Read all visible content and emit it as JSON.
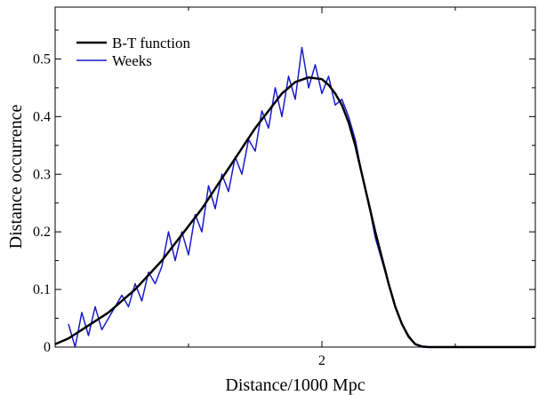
{
  "chart_data": {
    "type": "line",
    "title": "",
    "xlabel": "Distance/1000 Mpc",
    "ylabel": "Distance occurrence",
    "xlim": [
      0,
      3.6
    ],
    "ylim": [
      0,
      0.59
    ],
    "x_ticks": [
      {
        "value": 2,
        "label": "2"
      }
    ],
    "y_ticks": [
      {
        "value": 0,
        "label": "0"
      },
      {
        "value": 0.1,
        "label": "0.1"
      },
      {
        "value": 0.2,
        "label": "0.2"
      },
      {
        "value": 0.3,
        "label": "0.3"
      },
      {
        "value": 0.4,
        "label": "0.4"
      },
      {
        "value": 0.5,
        "label": "0.5"
      }
    ],
    "grid": false,
    "legend_position": "top-left",
    "series": [
      {
        "name": "B-T function",
        "color": "#000000",
        "x": [
          0,
          0.1,
          0.2,
          0.3,
          0.4,
          0.5,
          0.6,
          0.7,
          0.8,
          0.9,
          1.0,
          1.1,
          1.2,
          1.3,
          1.4,
          1.5,
          1.6,
          1.7,
          1.8,
          1.9,
          2.0,
          2.05,
          2.1,
          2.15,
          2.2,
          2.25,
          2.3,
          2.35,
          2.4,
          2.45,
          2.5,
          2.55,
          2.6,
          2.65,
          2.7,
          2.75,
          2.8,
          3.6
        ],
        "y": [
          0.005,
          0.015,
          0.03,
          0.045,
          0.06,
          0.08,
          0.1,
          0.125,
          0.15,
          0.18,
          0.21,
          0.24,
          0.275,
          0.31,
          0.345,
          0.38,
          0.41,
          0.44,
          0.46,
          0.468,
          0.465,
          0.455,
          0.44,
          0.42,
          0.39,
          0.35,
          0.3,
          0.25,
          0.2,
          0.155,
          0.11,
          0.07,
          0.04,
          0.018,
          0.005,
          0.001,
          0,
          0
        ]
      },
      {
        "name": "Weeks",
        "color": "#1a1acd",
        "x": [
          0.1,
          0.15,
          0.2,
          0.25,
          0.3,
          0.35,
          0.4,
          0.45,
          0.5,
          0.55,
          0.6,
          0.65,
          0.7,
          0.75,
          0.8,
          0.85,
          0.9,
          0.95,
          1.0,
          1.05,
          1.1,
          1.15,
          1.2,
          1.25,
          1.3,
          1.35,
          1.4,
          1.45,
          1.5,
          1.55,
          1.6,
          1.65,
          1.7,
          1.75,
          1.8,
          1.85,
          1.9,
          1.95,
          2.0,
          2.05,
          2.1,
          2.15,
          2.2,
          2.25,
          2.3,
          2.35,
          2.4,
          2.45,
          2.5,
          2.55,
          2.6,
          2.65,
          2.7,
          2.75,
          2.8,
          3.6
        ],
        "y": [
          0.04,
          0.0,
          0.06,
          0.02,
          0.07,
          0.03,
          0.05,
          0.07,
          0.09,
          0.07,
          0.11,
          0.08,
          0.13,
          0.11,
          0.14,
          0.2,
          0.15,
          0.2,
          0.16,
          0.23,
          0.2,
          0.28,
          0.24,
          0.3,
          0.27,
          0.33,
          0.3,
          0.36,
          0.34,
          0.41,
          0.38,
          0.45,
          0.4,
          0.47,
          0.43,
          0.52,
          0.45,
          0.49,
          0.44,
          0.47,
          0.42,
          0.43,
          0.4,
          0.36,
          0.3,
          0.25,
          0.19,
          0.15,
          0.11,
          0.07,
          0.04,
          0.02,
          0.005,
          0.0,
          0.0,
          0.0
        ]
      }
    ]
  }
}
